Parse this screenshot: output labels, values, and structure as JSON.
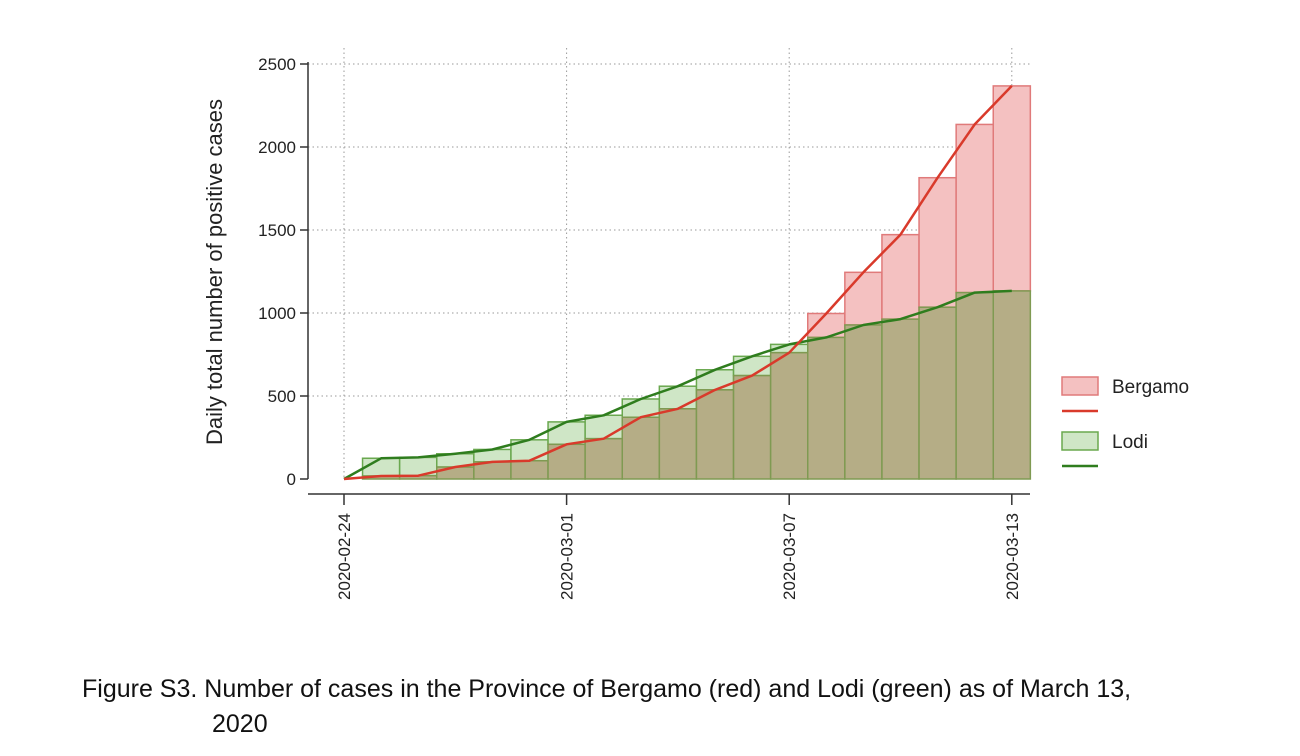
{
  "caption": {
    "line1": "Figure S3. Number of cases in the Province of Bergamo (red) and Lodi (green) as of March 13,",
    "line2": "2020"
  },
  "colors": {
    "bergamo_fill": "#f4c1c1",
    "bergamo_edge": "#e07a7a",
    "bergamo_line": "#d93a2b",
    "lodi_fill": "#cfe6c6",
    "lodi_edge": "#6aa84f",
    "lodi_line": "#2f7d1e",
    "overlap_fill": "#b5ad86"
  },
  "chart_data": {
    "type": "bar",
    "ylabel": "Daily total number of positive cases",
    "xlabel": "",
    "ylim": [
      0,
      2500
    ],
    "yticks": [
      0,
      500,
      1000,
      1500,
      2000,
      2500
    ],
    "xticks": [
      "2020-02-24",
      "2020-03-01",
      "2020-03-07",
      "2020-03-13"
    ],
    "grid": true,
    "legend_position": "right",
    "x": [
      "2020-02-24",
      "2020-02-25",
      "2020-02-26",
      "2020-02-27",
      "2020-02-28",
      "2020-02-29",
      "2020-03-01",
      "2020-03-02",
      "2020-03-03",
      "2020-03-04",
      "2020-03-05",
      "2020-03-06",
      "2020-03-07",
      "2020-03-08",
      "2020-03-09",
      "2020-03-10",
      "2020-03-11",
      "2020-03-12",
      "2020-03-13"
    ],
    "series": [
      {
        "name": "Bergamo",
        "values": [
          0,
          18,
          20,
          72,
          103,
          110,
          209,
          243,
          372,
          423,
          537,
          623,
          761,
          997,
          1245,
          1472,
          1815,
          2136,
          2368
        ]
      },
      {
        "name": "Lodi",
        "values": [
          0,
          125,
          130,
          152,
          178,
          236,
          344,
          384,
          482,
          559,
          658,
          739,
          811,
          853,
          928,
          963,
          1035,
          1123,
          1133
        ]
      }
    ],
    "legend": [
      "Bergamo",
      "Lodi"
    ]
  }
}
